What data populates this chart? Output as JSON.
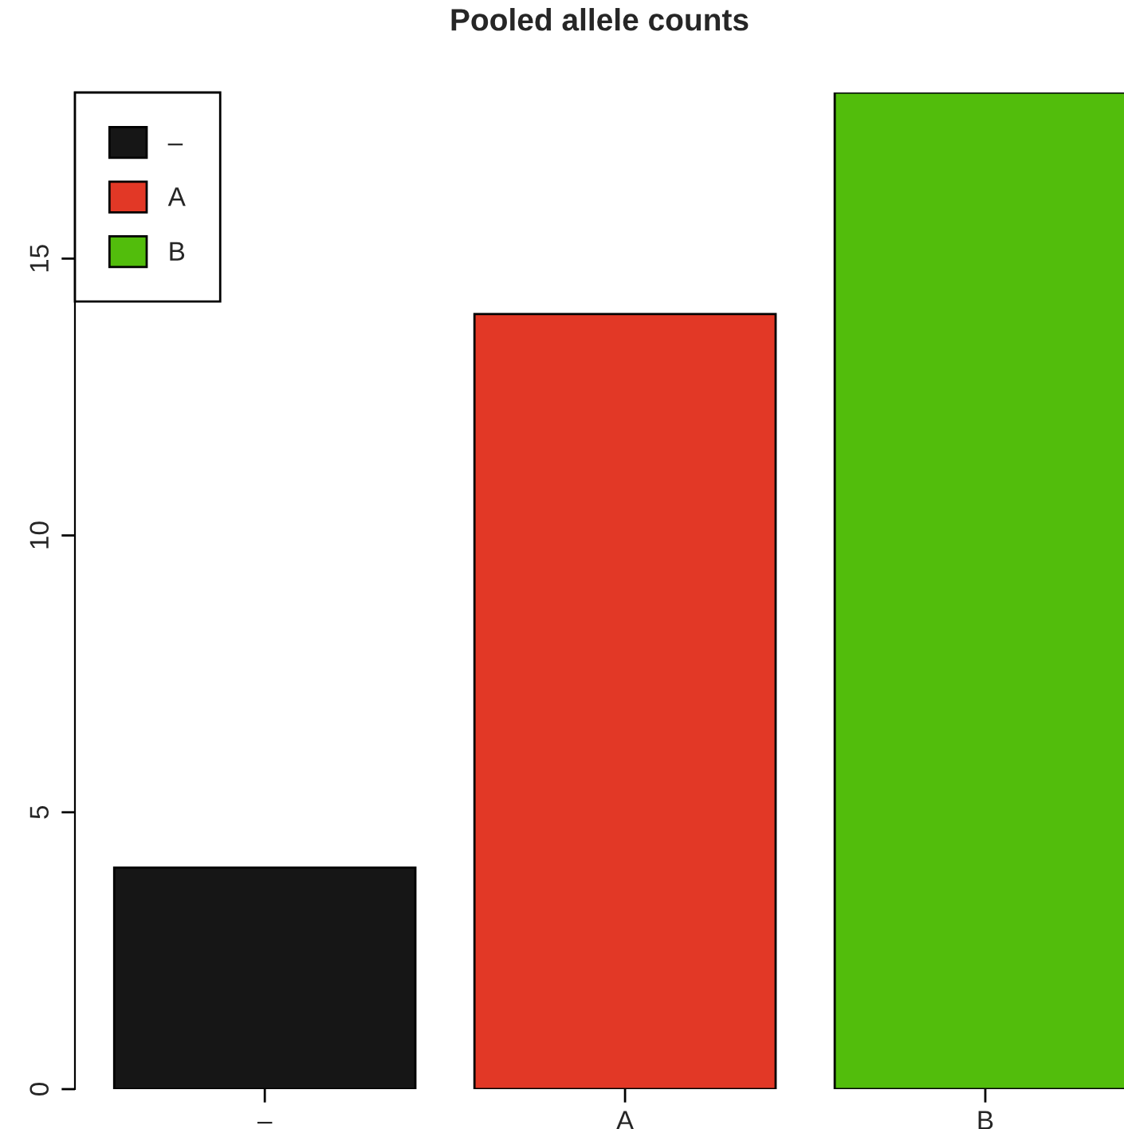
{
  "chart_data": {
    "type": "bar",
    "title": "Pooled allele counts",
    "categories": [
      "–",
      "A",
      "B"
    ],
    "series": [
      {
        "name": "–",
        "color": "#161616",
        "values": [
          4,
          null,
          null
        ]
      },
      {
        "name": "A",
        "color": "#e23826",
        "values": [
          null,
          14,
          null
        ]
      },
      {
        "name": "B",
        "color": "#52bd0c",
        "values": [
          null,
          null,
          18
        ]
      }
    ],
    "ylim": [
      0,
      18
    ],
    "yticks": [
      0,
      5,
      10,
      15
    ],
    "grid": false,
    "legend": "top left"
  }
}
